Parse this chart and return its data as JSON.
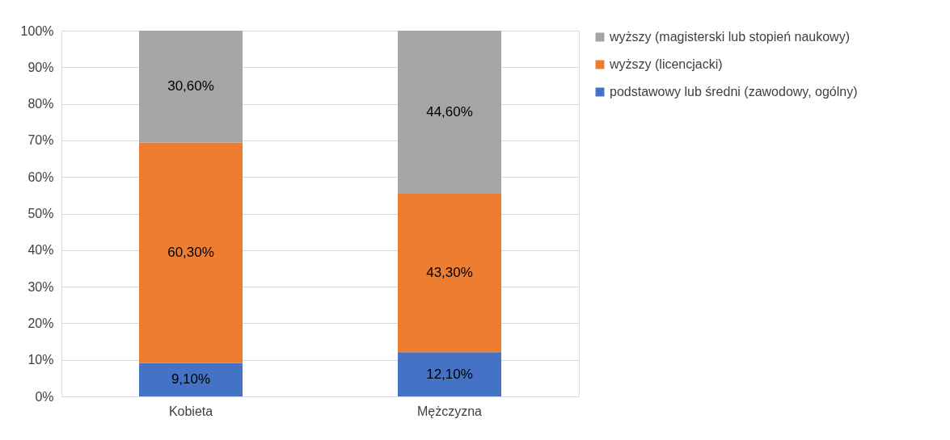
{
  "chart_data": {
    "type": "bar",
    "stacked": true,
    "categories": [
      "Kobieta",
      "Mężczyzna"
    ],
    "series": [
      {
        "name": "podstawowy lub średni (zawodowy, ogólny)",
        "color": "#4472c4",
        "values": [
          9.1,
          12.1
        ],
        "value_labels": [
          "9,10%",
          "12,10%"
        ]
      },
      {
        "name": "wyższy (licencjacki)",
        "color": "#ed7d31",
        "values": [
          60.3,
          43.3
        ],
        "value_labels": [
          "60,30%",
          "43,30%"
        ]
      },
      {
        "name": "wyższy (magisterski lub stopień naukowy)",
        "color": "#a5a5a5",
        "values": [
          30.6,
          44.6
        ],
        "value_labels": [
          "30,60%",
          "44,60%"
        ]
      }
    ],
    "ylim": [
      0,
      100
    ],
    "yticks": [
      {
        "value": 0,
        "label": "0%"
      },
      {
        "value": 10,
        "label": "10%"
      },
      {
        "value": 20,
        "label": "20%"
      },
      {
        "value": 30,
        "label": "30%"
      },
      {
        "value": 40,
        "label": "40%"
      },
      {
        "value": 50,
        "label": "50%"
      },
      {
        "value": 60,
        "label": "60%"
      },
      {
        "value": 70,
        "label": "70%"
      },
      {
        "value": 80,
        "label": "80%"
      },
      {
        "value": 90,
        "label": "90%"
      },
      {
        "value": 100,
        "label": "100%"
      }
    ],
    "grid": "y",
    "legend": "right"
  }
}
